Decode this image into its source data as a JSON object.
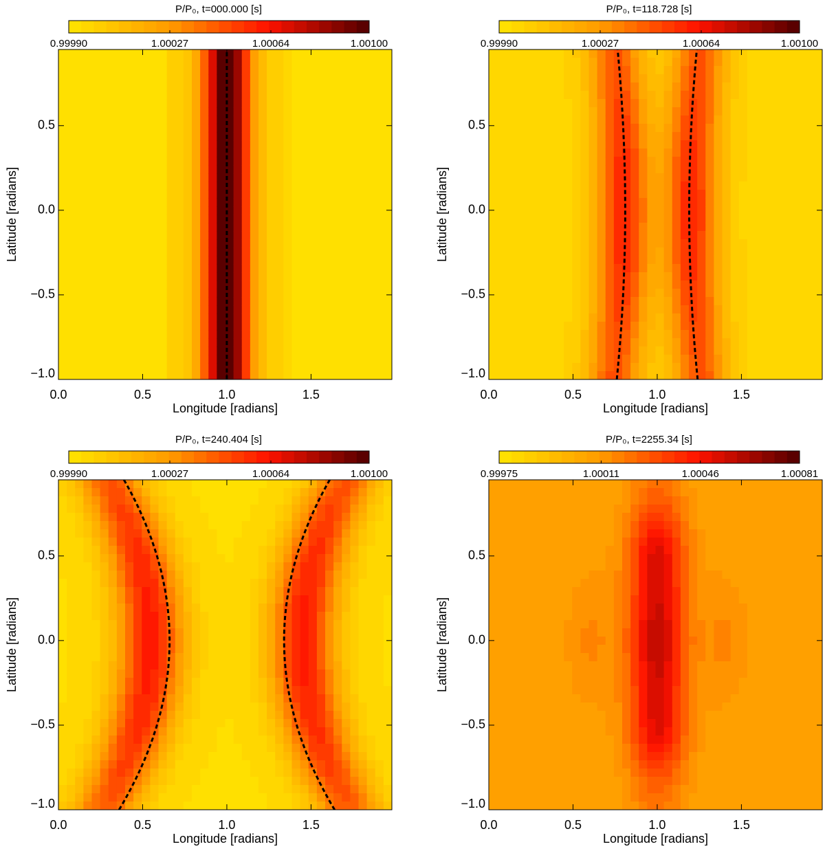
{
  "chart_data": [
    {
      "type": "contour",
      "title": "P/P₀, t=000.000  [s]",
      "xlabel": "Longitude [radians]",
      "ylabel": "Latitude [radians]",
      "xlim": [
        0,
        1.98
      ],
      "ylim": [
        -1.0,
        0.95
      ],
      "xticks": [
        {
          "value": 0,
          "label": "0.0"
        },
        0.5,
        {
          "value": 1,
          "label": "1.0"
        },
        1.5
      ],
      "yticks": [
        {
          "value": -1,
          "label": "−1.0"
        },
        {
          "value": -0.5,
          "label": "−0.5"
        },
        {
          "value": 0,
          "label": "0.0"
        },
        0.5
      ],
      "clim": [
        0.9999,
        1.001
      ],
      "cticks": [
        {
          "value": 0.9999,
          "label": "0.99990"
        },
        1.00027,
        1.00064,
        {
          "value": 1.001,
          "label": "1.00100"
        }
      ],
      "colormap": [
        "#ffe000",
        "#ff9a00",
        "#ff1200",
        "#5a0000"
      ]
    },
    {
      "type": "contour",
      "title": "P/P₀, t=118.728  [s]",
      "xlabel": "Longitude [radians]",
      "ylabel": "Latitude [radians]",
      "xlim": [
        0,
        1.98
      ],
      "ylim": [
        -1.0,
        0.95
      ],
      "xticks": [
        {
          "value": 0,
          "label": "0.0"
        },
        0.5,
        {
          "value": 1,
          "label": "1.0"
        },
        1.5
      ],
      "yticks": [
        {
          "value": -1,
          "label": "−1.0"
        },
        {
          "value": -0.5,
          "label": "−0.5"
        },
        {
          "value": 0,
          "label": "0.0"
        },
        0.5
      ],
      "clim": [
        0.9999,
        1.001
      ],
      "cticks": [
        {
          "value": 0.9999,
          "label": "0.99990"
        },
        1.00027,
        1.00064,
        {
          "value": 1.001,
          "label": "1.00100"
        }
      ],
      "colormap": [
        "#ffe000",
        "#ff9a00",
        "#ff1200",
        "#5a0000"
      ]
    },
    {
      "type": "contour",
      "title": "P/P₀, t=240.404  [s]",
      "xlabel": "Longitude [radians]",
      "ylabel": "Latitude [radians]",
      "xlim": [
        0,
        1.98
      ],
      "ylim": [
        -1.0,
        0.95
      ],
      "xticks": [
        {
          "value": 0,
          "label": "0.0"
        },
        0.5,
        {
          "value": 1,
          "label": "1.0"
        },
        1.5
      ],
      "yticks": [
        {
          "value": -1,
          "label": "−1.0"
        },
        {
          "value": -0.5,
          "label": "−0.5"
        },
        {
          "value": 0,
          "label": "0.0"
        },
        0.5
      ],
      "clim": [
        0.9999,
        1.001
      ],
      "cticks": [
        {
          "value": 0.9999,
          "label": "0.99990"
        },
        1.00027,
        1.00064,
        {
          "value": 1.001,
          "label": "1.00100"
        }
      ],
      "colormap": [
        "#ffe000",
        "#ff9a00",
        "#ff1200",
        "#5a0000"
      ]
    },
    {
      "type": "contour",
      "title": "P/P₀, t=2255.34  [s]",
      "xlabel": "Longitude [radians]",
      "ylabel": "Latitude [radians]",
      "xlim": [
        0,
        1.98
      ],
      "ylim": [
        -1.0,
        0.95
      ],
      "xticks": [
        {
          "value": 0,
          "label": "0.0"
        },
        0.5,
        {
          "value": 1,
          "label": "1.0"
        },
        1.5
      ],
      "yticks": [
        {
          "value": -1,
          "label": "−1.0"
        },
        {
          "value": -0.5,
          "label": "−0.5"
        },
        {
          "value": 0,
          "label": "0.0"
        },
        0.5
      ],
      "clim": [
        0.99975,
        1.00081
      ],
      "cticks": [
        0.99975,
        1.00011,
        1.00046,
        1.00081
      ],
      "colormap": [
        "#ffe000",
        "#ff9a00",
        "#ff1200",
        "#5a0000"
      ]
    }
  ]
}
